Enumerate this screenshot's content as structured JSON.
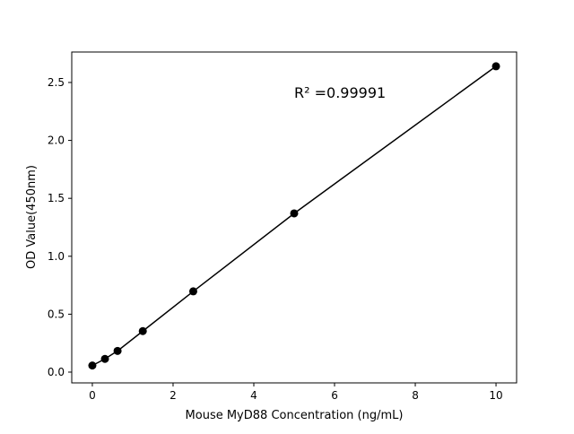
{
  "chart_data": {
    "type": "line",
    "title": "",
    "xlabel": "Mouse MyD88 Concentration (ng/mL)",
    "ylabel": "OD Value(450nm)",
    "xlim": [
      -0.51,
      10.51
    ],
    "ylim": [
      -0.093,
      2.763
    ],
    "xticks": [
      0,
      2,
      4,
      6,
      8,
      10
    ],
    "yticks": [
      "0.0",
      "0.5",
      "1.0",
      "1.5",
      "2.0",
      "2.5"
    ],
    "grid": false,
    "annotation": "R² =0.99991",
    "series": [
      {
        "x": [
          0,
          0.3125,
          0.625,
          1.25,
          2.5,
          5,
          10
        ],
        "y": [
          0.057,
          0.114,
          0.183,
          0.354,
          0.697,
          1.37,
          2.64
        ],
        "color": "#000000",
        "marker": "circle"
      }
    ]
  }
}
